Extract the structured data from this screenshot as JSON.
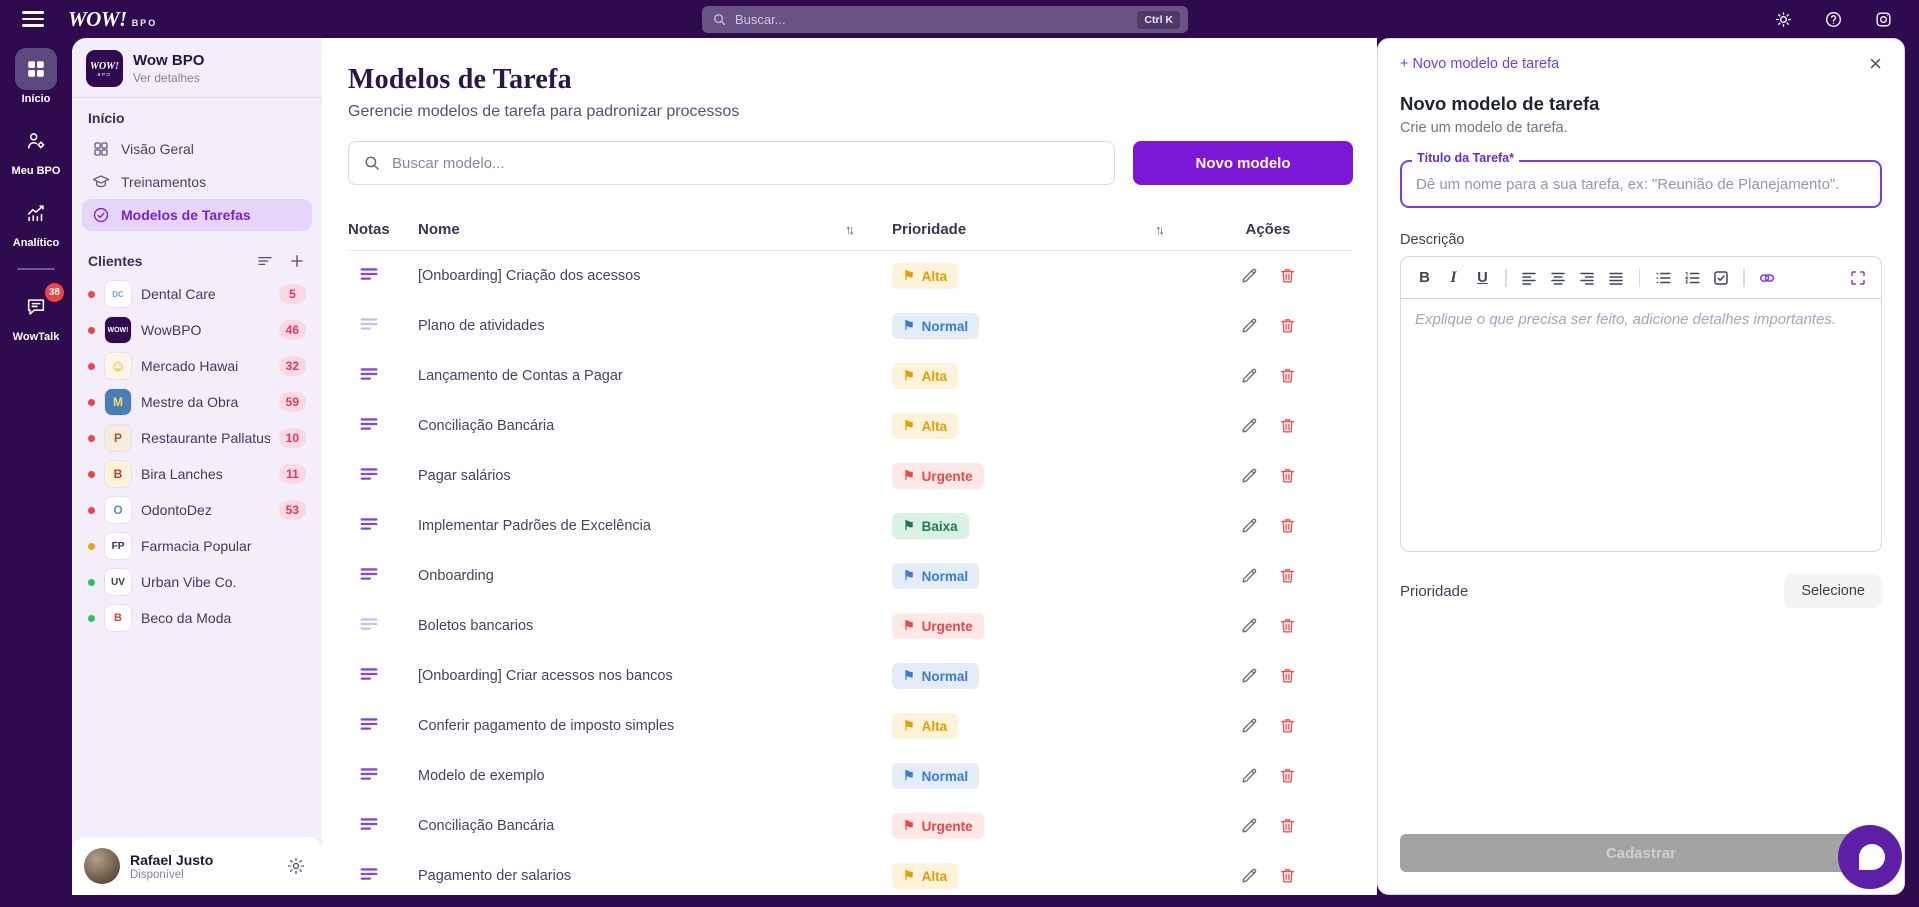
{
  "topbar": {
    "logo": "WOW!",
    "logo_suffix": "BPO",
    "search_placeholder": "Buscar...",
    "search_shortcut": "Ctrl K"
  },
  "rail": {
    "items": [
      {
        "id": "inicio",
        "label": "Início",
        "icon": "grid-fill",
        "active": true,
        "badge": null,
        "divider_after": false
      },
      {
        "id": "meu-bpo",
        "label": "Meu BPO",
        "icon": "user-gear",
        "active": false,
        "badge": null,
        "divider_after": false
      },
      {
        "id": "analitico",
        "label": "Analítico",
        "icon": "chart",
        "active": false,
        "badge": null,
        "divider_after": true
      },
      {
        "id": "wowtalk",
        "label": "WowTalk",
        "icon": "chat",
        "active": false,
        "badge": "38",
        "divider_after": false
      }
    ]
  },
  "sidebar": {
    "org": {
      "logo_text": "WOW!",
      "logo_sub": "BPO",
      "name": "Wow BPO",
      "link": "Ver detalhes"
    },
    "section_label": "Início",
    "nav": [
      {
        "label": "Visão Geral",
        "icon": "grid-outline",
        "active": false
      },
      {
        "label": "Treinamentos",
        "icon": "cap",
        "active": false
      },
      {
        "label": "Modelos de Tarefas",
        "icon": "check-circle",
        "active": true
      }
    ],
    "clients_label": "Clientes",
    "clients": [
      {
        "name": "Dental Care",
        "count": "5",
        "dot": "#ef4444",
        "av_bg": "#ffffff",
        "av_fg": "#6aa6d8",
        "av_text": "DC",
        "av_size": "8px"
      },
      {
        "name": "WowBPO",
        "count": "46",
        "dot": "#ef4444",
        "av_bg": "#2e0b4f",
        "av_fg": "#ffffff",
        "av_text": "WOW!",
        "av_size": "7px"
      },
      {
        "name": "Mercado Hawai",
        "count": "32",
        "dot": "#ef4444",
        "av_bg": "#fff6e8",
        "av_fg": "#f59e0b",
        "av_text": "☺",
        "av_size": "15px"
      },
      {
        "name": "Mestre da Obra",
        "count": "59",
        "dot": "#ef4444",
        "av_bg": "#4a7fb5",
        "av_fg": "#ffd75e",
        "av_text": "M",
        "av_size": "12px"
      },
      {
        "name": "Restaurante Pallatus",
        "count": "10",
        "dot": "#ef4444",
        "av_bg": "#f6ecd9",
        "av_fg": "#a3562e",
        "av_text": "P",
        "av_size": "12px"
      },
      {
        "name": "Bira Lanches",
        "count": "11",
        "dot": "#ef4444",
        "av_bg": "#fbf2da",
        "av_fg": "#c23a2c",
        "av_text": "B",
        "av_size": "12px"
      },
      {
        "name": "OdontoDez",
        "count": "53",
        "dot": "#ef4444",
        "av_bg": "#ffffff",
        "av_fg": "#4f92d1",
        "av_text": "O",
        "av_size": "12px"
      },
      {
        "name": "Farmacia Popular",
        "count": null,
        "dot": "#f59e0b",
        "av_bg": "#ffffff",
        "av_fg": "#42275e",
        "av_text": "FP",
        "av_size": "10px"
      },
      {
        "name": "Urban Vibe Co.",
        "count": null,
        "dot": "#22c55e",
        "av_bg": "#ffffff",
        "av_fg": "#3f3a52",
        "av_text": "UV",
        "av_size": "10px"
      },
      {
        "name": "Beco da Moda",
        "count": null,
        "dot": "#22c55e",
        "av_bg": "#ffffff",
        "av_fg": "#d6453c",
        "av_text": "B",
        "av_size": "11px"
      }
    ],
    "user": {
      "name": "Rafael Justo",
      "status": "Disponível"
    }
  },
  "main": {
    "title": "Modelos de Tarefa",
    "subtitle": "Gerencie modelos de tarefa para padronizar processos",
    "search_placeholder": "Buscar modelo...",
    "new_button": "Novo modelo",
    "sort_glyph": "↑↓",
    "flag_glyph": "⚑",
    "columns": {
      "notes": "Notas",
      "name": "Nome",
      "priority": "Prioridade",
      "actions": "Ações"
    },
    "priority_styles": {
      "Alta": {
        "bg": "#fcf3da",
        "fg": "#dfa004"
      },
      "Normal": {
        "bg": "#e4edf7",
        "fg": "#3a7bd5"
      },
      "Urgente": {
        "bg": "#fde8e8",
        "fg": "#ea4747"
      },
      "Baixa": {
        "bg": "#d9f2e4",
        "fg": "#1e7a50"
      }
    },
    "rows": [
      {
        "name": "[Onboarding] Criação dos acessos",
        "priority": "Alta",
        "notes_solid": true
      },
      {
        "name": "Plano de atividades",
        "priority": "Normal",
        "notes_solid": false
      },
      {
        "name": "Lançamento de Contas a Pagar",
        "priority": "Alta",
        "notes_solid": true
      },
      {
        "name": "Conciliação Bancária",
        "priority": "Alta",
        "notes_solid": true
      },
      {
        "name": "Pagar salários",
        "priority": "Urgente",
        "notes_solid": true
      },
      {
        "name": "Implementar Padrões de Excelência",
        "priority": "Baixa",
        "notes_solid": true
      },
      {
        "name": "Onboarding",
        "priority": "Normal",
        "notes_solid": true
      },
      {
        "name": "Boletos bancarios",
        "priority": "Urgente",
        "notes_solid": false
      },
      {
        "name": "[Onboarding] Criar acessos nos bancos",
        "priority": "Normal",
        "notes_solid": true
      },
      {
        "name": "Conferir pagamento de imposto simples",
        "priority": "Alta",
        "notes_solid": true
      },
      {
        "name": "Modelo de exemplo",
        "priority": "Normal",
        "notes_solid": true
      },
      {
        "name": "Conciliação Bancária",
        "priority": "Urgente",
        "notes_solid": true
      },
      {
        "name": "Pagamento der salarios",
        "priority": "Alta",
        "notes_solid": true
      }
    ]
  },
  "panel": {
    "new_link": "+ Novo modelo de tarefa",
    "close_glyph": "×",
    "title": "Novo modelo de tarefa",
    "subtitle": "Crie um modelo de tarefa.",
    "field_label": "Título da Tarefa*",
    "field_placeholder": "Dê um nome para a sua tarefa, ex: \"Reunião de Planejamento\".",
    "description_label": "Descrição",
    "editor_placeholder": "Explique o que precisa ser feito, adicione detalhes importantes.",
    "toolbar": [
      "bold",
      "italic",
      "underline",
      "divider",
      "align-left",
      "align-center",
      "align-right",
      "align-justify",
      "divider",
      "list-ul",
      "list-ol",
      "checkbox",
      "divider",
      "link",
      "spacer",
      "fullscreen"
    ],
    "priority_label": "Prioridade",
    "priority_button": "Selecione",
    "submit": "Cadastrar"
  }
}
